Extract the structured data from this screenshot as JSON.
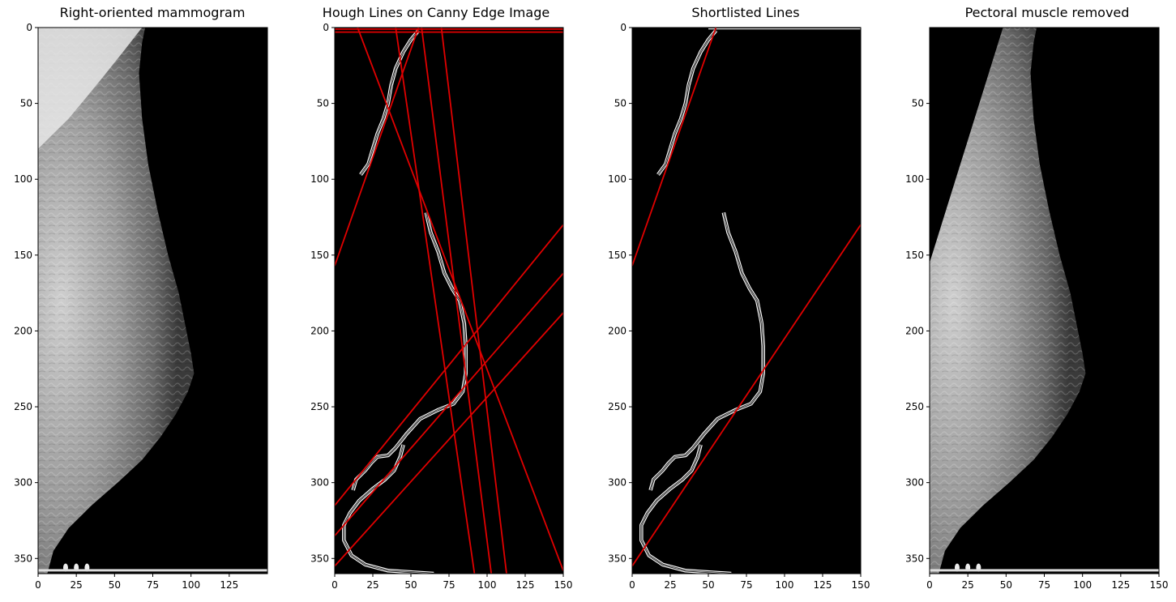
{
  "panels": [
    {
      "id": "mammogram",
      "title": "Right-oriented mammogram",
      "content": "mammogram-image",
      "y_ticks": [
        0,
        50,
        100,
        150,
        200,
        250,
        300,
        350
      ],
      "x_ticks": [
        0,
        25,
        50,
        75,
        100,
        125
      ],
      "xlim": [
        0,
        150
      ],
      "ylim": [
        360,
        0
      ]
    },
    {
      "id": "hough",
      "title": "Hough Lines on Canny Edge Image",
      "content": "edges-with-many-lines",
      "y_ticks": [
        0,
        50,
        100,
        150,
        200,
        250,
        300,
        350
      ],
      "x_ticks": [
        0,
        25,
        50,
        75,
        100,
        125,
        150
      ],
      "xlim": [
        0,
        150
      ],
      "ylim": [
        360,
        0
      ]
    },
    {
      "id": "shortlisted",
      "title": "Shortlisted Lines",
      "content": "edges-with-few-lines",
      "y_ticks": [
        0,
        50,
        100,
        150,
        200,
        250,
        300,
        350
      ],
      "x_ticks": [
        0,
        25,
        50,
        75,
        100,
        125,
        150
      ],
      "xlim": [
        0,
        150
      ],
      "ylim": [
        360,
        0
      ]
    },
    {
      "id": "pectoral-removed",
      "title": "Pectoral muscle removed",
      "content": "mammogram-image-cut",
      "y_ticks": [
        50,
        100,
        150,
        200,
        250,
        300,
        350
      ],
      "x_ticks": [
        0,
        25,
        50,
        75,
        100,
        125,
        150
      ],
      "xlim": [
        0,
        150
      ],
      "ylim": [
        360,
        0
      ]
    }
  ],
  "colors": {
    "hough_line": "#e00000",
    "edge": "#dddddd",
    "image_bg": "#000000"
  },
  "edge_curves": {
    "upper": [
      [
        55,
        2
      ],
      [
        50,
        8
      ],
      [
        45,
        16
      ],
      [
        40,
        27
      ],
      [
        37,
        38
      ],
      [
        35,
        50
      ],
      [
        32,
        60
      ],
      [
        28,
        70
      ],
      [
        25,
        80
      ],
      [
        22,
        90
      ],
      [
        17,
        97
      ]
    ],
    "middle": [
      [
        60,
        122
      ],
      [
        63,
        135
      ],
      [
        68,
        148
      ],
      [
        72,
        162
      ],
      [
        77,
        172
      ],
      [
        82,
        180
      ],
      [
        85,
        195
      ],
      [
        86,
        210
      ],
      [
        86,
        228
      ],
      [
        84,
        240
      ],
      [
        78,
        248
      ],
      [
        68,
        252
      ],
      [
        56,
        258
      ],
      [
        47,
        268
      ],
      [
        40,
        277
      ],
      [
        35,
        282
      ],
      [
        28,
        283
      ],
      [
        24,
        287
      ],
      [
        20,
        292
      ],
      [
        14,
        298
      ],
      [
        12,
        305
      ]
    ],
    "lower": [
      [
        45,
        275
      ],
      [
        43,
        283
      ],
      [
        39,
        292
      ],
      [
        33,
        298
      ],
      [
        25,
        304
      ],
      [
        16,
        312
      ],
      [
        10,
        320
      ],
      [
        6,
        328
      ],
      [
        6,
        338
      ],
      [
        11,
        348
      ],
      [
        20,
        354
      ],
      [
        35,
        358
      ],
      [
        65,
        360
      ]
    ],
    "bottom_border": [
      [
        30,
        361
      ],
      [
        150,
        361
      ]
    ],
    "top_border": [
      [
        50,
        0
      ],
      [
        150,
        0
      ]
    ]
  },
  "hough_lines": [
    [
      [
        0,
        1
      ],
      [
        150,
        1
      ]
    ],
    [
      [
        0,
        3
      ],
      [
        150,
        3
      ]
    ],
    [
      [
        15,
        0
      ],
      [
        150,
        358
      ]
    ],
    [
      [
        40,
        0
      ],
      [
        92,
        362
      ]
    ],
    [
      [
        57,
        0
      ],
      [
        103,
        362
      ]
    ],
    [
      [
        70,
        0
      ],
      [
        113,
        362
      ]
    ],
    [
      [
        0,
        157
      ],
      [
        55,
        0
      ]
    ],
    [
      [
        0,
        315
      ],
      [
        150,
        130
      ]
    ],
    [
      [
        0,
        335
      ],
      [
        150,
        162
      ]
    ],
    [
      [
        0,
        355
      ],
      [
        150,
        188
      ]
    ]
  ],
  "shortlisted_lines": [
    [
      [
        0,
        157
      ],
      [
        55,
        0
      ]
    ],
    [
      [
        0,
        355
      ],
      [
        150,
        130
      ]
    ]
  ]
}
